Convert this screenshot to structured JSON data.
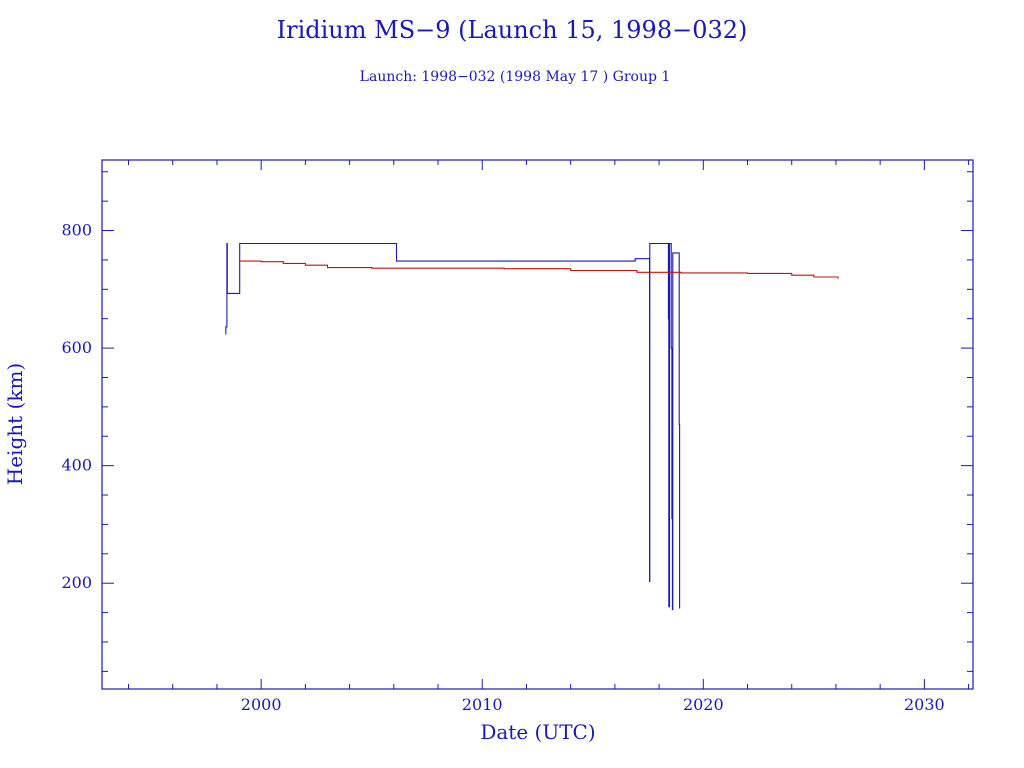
{
  "chart_data": {
    "type": "line",
    "title": "Iridium MS−9 (Launch 15, 1998−032)",
    "subtitle": "Launch: 1998−032  (1998 May 17 )  Group 1",
    "xlabel": "Date (UTC)",
    "ylabel": "Height (km)",
    "xlim": [
      1992.8,
      2032.2
    ],
    "ylim": [
      20,
      920
    ],
    "x_ticks": [
      2000,
      2010,
      2020,
      2030
    ],
    "y_ticks": [
      200,
      400,
      600,
      800
    ],
    "x_minor_step": 2,
    "y_minor_step": 50,
    "grid": false,
    "colors": {
      "axis": "#1a1ab0",
      "apogee": "#1a1ab0",
      "perigee": "#c81010"
    },
    "series": [
      {
        "name": "",
        "color": "#1a1ab0",
        "points": [
          [
            1998.38,
            624
          ],
          [
            1998.4,
            636
          ],
          [
            1998.42,
            636
          ],
          [
            1998.45,
            778
          ],
          [
            1998.47,
            693
          ],
          [
            1998.48,
            693
          ],
          [
            1999.02,
            693
          ],
          [
            1999.03,
            778
          ],
          [
            1999.04,
            778
          ],
          [
            2006.1,
            778
          ],
          [
            2006.12,
            748
          ],
          [
            2016.9,
            748
          ],
          [
            2016.92,
            752
          ],
          [
            2017.55,
            752
          ],
          [
            2017.57,
            203
          ],
          [
            2017.58,
            778
          ],
          [
            2018.3,
            778
          ],
          [
            2018.4,
            778
          ],
          [
            2018.42,
            650
          ],
          [
            2018.44,
            160
          ],
          [
            2018.47,
            778
          ],
          [
            2018.55,
            600
          ],
          [
            2018.58,
            310
          ],
          [
            2018.6,
            155
          ],
          [
            2018.62,
            762
          ],
          [
            2018.9,
            762
          ],
          [
            2018.91,
            470
          ],
          [
            2018.93,
            157
          ]
        ]
      },
      {
        "name": "",
        "color": "#c81010",
        "points": [
          [
            1999.05,
            748
          ],
          [
            2000.0,
            747
          ],
          [
            2001.0,
            744
          ],
          [
            2002.0,
            741
          ],
          [
            2003.0,
            737
          ],
          [
            2005.0,
            736
          ],
          [
            2008.0,
            736
          ],
          [
            2011.0,
            735
          ],
          [
            2014.0,
            732
          ],
          [
            2017.0,
            729
          ],
          [
            2019.0,
            728
          ],
          [
            2022.0,
            727
          ],
          [
            2024.0,
            724
          ],
          [
            2025.0,
            721
          ],
          [
            2026.1,
            718
          ]
        ]
      }
    ]
  }
}
